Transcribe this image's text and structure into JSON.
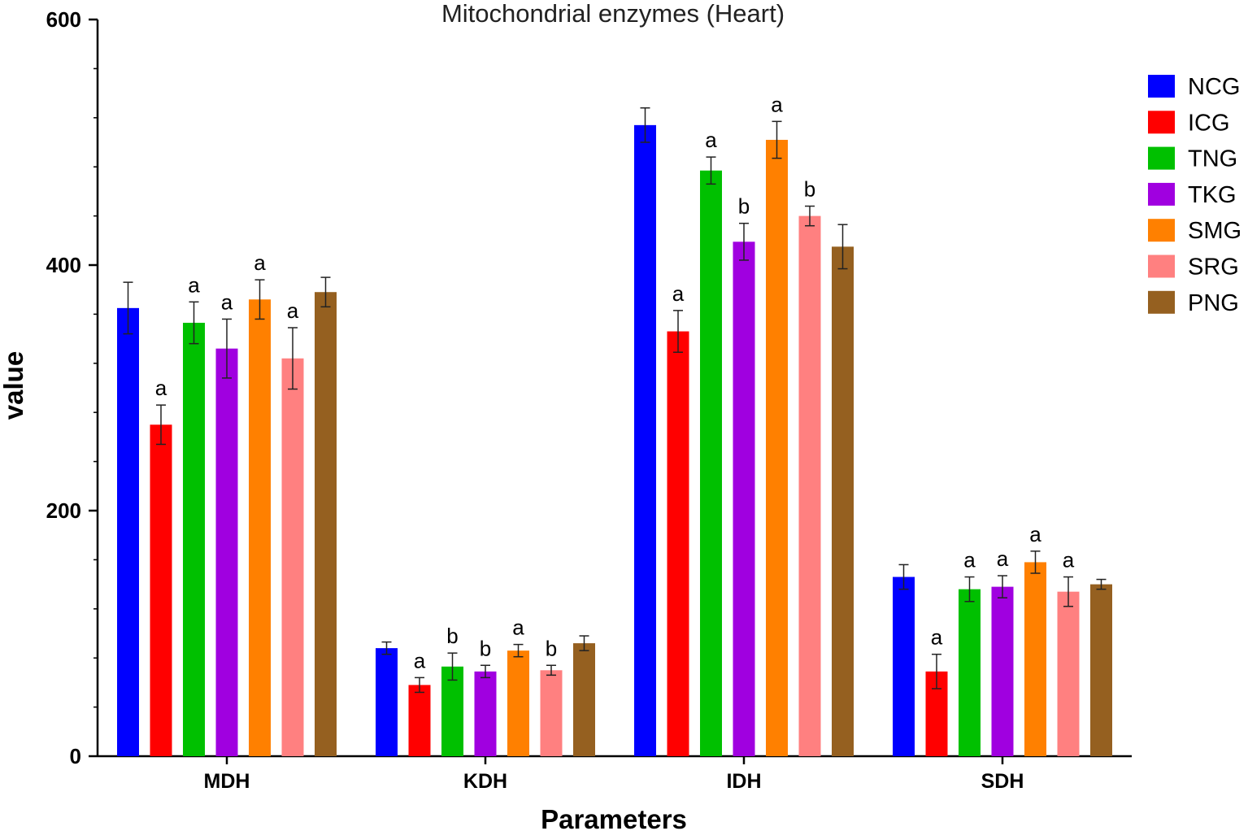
{
  "chart_data": {
    "type": "bar",
    "title": "Mitochondrial enzymes (Heart)",
    "xlabel": "Parameters",
    "ylabel": "value",
    "ylim": [
      0,
      600
    ],
    "yticks": [
      0,
      200,
      400,
      600
    ],
    "grid": false,
    "legend_position": "right",
    "categories": [
      "MDH",
      "KDH",
      "IDH",
      "SDH"
    ],
    "series": [
      {
        "name": "NCG",
        "color": "#0000ff",
        "values": [
          365,
          88,
          514,
          146
        ],
        "errors": [
          21,
          5,
          14,
          10
        ],
        "labels": [
          "",
          "",
          "",
          ""
        ]
      },
      {
        "name": "ICG",
        "color": "#ff0000",
        "values": [
          270,
          58,
          346,
          69
        ],
        "errors": [
          16,
          6,
          17,
          14
        ],
        "labels": [
          "a",
          "a",
          "a",
          "a"
        ]
      },
      {
        "name": "TNG",
        "color": "#00c000",
        "values": [
          353,
          73,
          477,
          136
        ],
        "errors": [
          17,
          11,
          11,
          10
        ],
        "labels": [
          "a",
          "b",
          "a",
          "a"
        ]
      },
      {
        "name": "TKG",
        "color": "#a000e0",
        "values": [
          332,
          69,
          419,
          138
        ],
        "errors": [
          24,
          5,
          15,
          9
        ],
        "labels": [
          "a",
          "b",
          "b",
          "a"
        ]
      },
      {
        "name": "SMG",
        "color": "#ff8000",
        "values": [
          372,
          86,
          502,
          158
        ],
        "errors": [
          16,
          5,
          15,
          9
        ],
        "labels": [
          "a",
          "a",
          "a",
          "a"
        ]
      },
      {
        "name": "SRG",
        "color": "#ff8080",
        "values": [
          324,
          70,
          440,
          134
        ],
        "errors": [
          25,
          4,
          8,
          12
        ],
        "labels": [
          "a",
          "b",
          "b",
          "a"
        ]
      },
      {
        "name": "PNG",
        "color": "#956020",
        "values": [
          378,
          92,
          415,
          140
        ],
        "errors": [
          12,
          6,
          18,
          4
        ],
        "labels": [
          "",
          "",
          "",
          ""
        ]
      }
    ]
  }
}
